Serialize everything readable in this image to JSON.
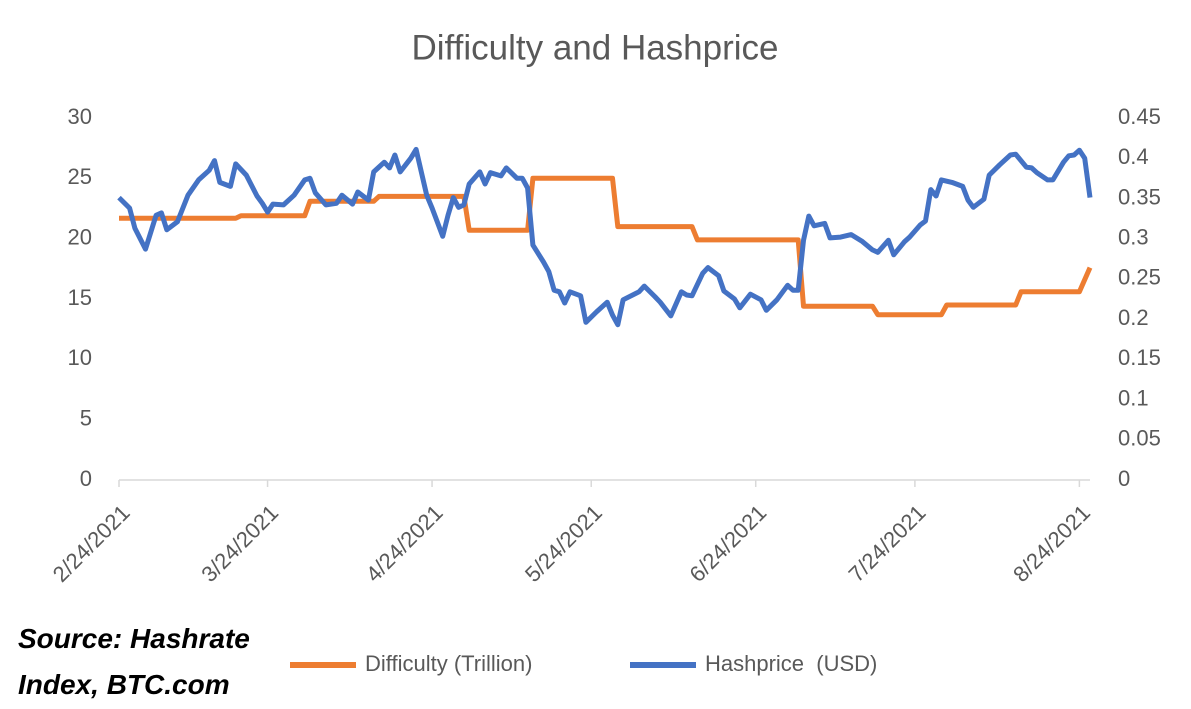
{
  "chart_data": {
    "type": "line",
    "title": "Difficulty and Hashprice",
    "source": "Source: Hashrate Index, BTC.com",
    "xlim": [
      "2/24/2021",
      "8/26/2021"
    ],
    "xticks": [
      "2/24/2021",
      "3/24/2021",
      "4/24/2021",
      "5/24/2021",
      "6/24/2021",
      "7/24/2021",
      "8/24/2021"
    ],
    "ylim": [
      0,
      30
    ],
    "yticks": [
      0,
      5,
      10,
      15,
      20,
      25,
      30
    ],
    "y2lim": [
      0,
      0.45
    ],
    "y2ticks": [
      0,
      0.05,
      0.1,
      0.15,
      0.2,
      0.25,
      0.3,
      0.35,
      0.4,
      0.45
    ],
    "grid": false,
    "series": [
      {
        "name": "Difficulty (Trillion)",
        "color": "#ed7d31",
        "axis": "y",
        "x": [
          "2/24/2021",
          "3/18/2021",
          "3/19/2021",
          "3/31/2021",
          "4/1/2021",
          "4/13/2021",
          "4/14/2021",
          "4/30/2021",
          "5/1/2021",
          "5/12/2021",
          "5/13/2021",
          "5/28/2021",
          "5/29/2021",
          "6/12/2021",
          "6/13/2021",
          "7/2/2021",
          "7/3/2021",
          "7/16/2021",
          "7/17/2021",
          "7/29/2021",
          "7/30/2021",
          "8/12/2021",
          "8/13/2021",
          "8/24/2021",
          "8/26/2021"
        ],
        "values": [
          21.7,
          21.7,
          21.9,
          21.9,
          23.1,
          23.1,
          23.5,
          23.5,
          20.7,
          20.7,
          25.0,
          25.0,
          21.0,
          21.0,
          19.9,
          19.9,
          14.4,
          14.4,
          13.7,
          13.7,
          14.5,
          14.5,
          15.6,
          15.6,
          17.6
        ]
      },
      {
        "name": "Hashprice  (USD)",
        "color": "#4472c4",
        "axis": "y2",
        "x": [
          "2/24/2021",
          "2/26/2021",
          "2/27/2021",
          "3/1/2021",
          "3/3/2021",
          "3/4/2021",
          "3/5/2021",
          "3/7/2021",
          "3/9/2021",
          "3/11/2021",
          "3/13/2021",
          "3/14/2021",
          "3/15/2021",
          "3/17/2021",
          "3/18/2021",
          "3/20/2021",
          "3/22/2021",
          "3/23/2021",
          "3/24/2021",
          "3/25/2021",
          "3/27/2021",
          "3/29/2021",
          "3/31/2021",
          "4/1/2021",
          "4/2/2021",
          "4/4/2021",
          "4/6/2021",
          "4/7/2021",
          "4/9/2021",
          "4/10/2021",
          "4/12/2021",
          "4/13/2021",
          "4/15/2021",
          "4/16/2021",
          "4/17/2021",
          "4/18/2021",
          "4/20/2021",
          "4/21/2021",
          "4/23/2021",
          "4/24/2021",
          "4/26/2021",
          "4/27/2021",
          "4/28/2021",
          "4/29/2021",
          "4/30/2021",
          "5/1/2021",
          "5/3/2021",
          "5/4/2021",
          "5/5/2021",
          "5/7/2021",
          "5/8/2021",
          "5/10/2021",
          "5/11/2021",
          "5/12/2021",
          "5/13/2021",
          "5/15/2021",
          "5/16/2021",
          "5/17/2021",
          "5/18/2021",
          "5/19/2021",
          "5/20/2021",
          "5/22/2021",
          "5/23/2021",
          "5/25/2021",
          "5/27/2021",
          "5/28/2021",
          "5/29/2021",
          "5/30/2021",
          "6/2/2021",
          "6/3/2021",
          "6/5/2021",
          "6/6/2021",
          "6/8/2021",
          "6/10/2021",
          "6/11/2021",
          "6/12/2021",
          "6/14/2021",
          "6/15/2021",
          "6/17/2021",
          "6/18/2021",
          "6/20/2021",
          "6/21/2021",
          "6/23/2021",
          "6/25/2021",
          "6/26/2021",
          "6/28/2021",
          "6/30/2021",
          "7/1/2021",
          "7/2/2021",
          "7/3/2021",
          "7/4/2021",
          "7/5/2021",
          "7/7/2021",
          "7/8/2021",
          "7/10/2021",
          "7/12/2021",
          "7/14/2021",
          "7/16/2021",
          "7/17/2021",
          "7/19/2021",
          "7/20/2021",
          "7/22/2021",
          "7/23/2021",
          "7/25/2021",
          "7/26/2021",
          "7/27/2021",
          "7/28/2021",
          "7/29/2021",
          "7/31/2021",
          "8/2/2021",
          "8/3/2021",
          "8/4/2021",
          "8/6/2021",
          "8/7/2021",
          "8/9/2021",
          "8/11/2021",
          "8/12/2021",
          "8/14/2021",
          "8/15/2021",
          "8/16/2021",
          "8/18/2021",
          "8/19/2021",
          "8/21/2021",
          "8/22/2021",
          "8/23/2021",
          "8/24/2021",
          "8/25/2021",
          "8/26/2021"
        ],
        "values": [
          0.351,
          0.338,
          0.313,
          0.287,
          0.329,
          0.332,
          0.311,
          0.321,
          0.354,
          0.373,
          0.385,
          0.397,
          0.37,
          0.365,
          0.393,
          0.379,
          0.353,
          0.344,
          0.333,
          0.343,
          0.342,
          0.354,
          0.373,
          0.375,
          0.357,
          0.342,
          0.344,
          0.354,
          0.343,
          0.358,
          0.348,
          0.383,
          0.395,
          0.388,
          0.404,
          0.383,
          0.4,
          0.411,
          0.354,
          0.338,
          0.303,
          0.329,
          0.351,
          0.339,
          0.342,
          0.368,
          0.383,
          0.368,
          0.382,
          0.378,
          0.388,
          0.375,
          0.375,
          0.363,
          0.292,
          0.271,
          0.259,
          0.236,
          0.234,
          0.22,
          0.234,
          0.229,
          0.196,
          0.209,
          0.221,
          0.205,
          0.193,
          0.224,
          0.234,
          0.241,
          0.228,
          0.221,
          0.204,
          0.234,
          0.23,
          0.229,
          0.257,
          0.264,
          0.254,
          0.235,
          0.225,
          0.214,
          0.231,
          0.224,
          0.211,
          0.224,
          0.242,
          0.236,
          0.236,
          0.298,
          0.328,
          0.316,
          0.319,
          0.301,
          0.302,
          0.305,
          0.297,
          0.286,
          0.283,
          0.298,
          0.28,
          0.296,
          0.302,
          0.317,
          0.322,
          0.361,
          0.353,
          0.373,
          0.37,
          0.365,
          0.348,
          0.339,
          0.349,
          0.379,
          0.392,
          0.404,
          0.405,
          0.389,
          0.388,
          0.382,
          0.373,
          0.373,
          0.395,
          0.403,
          0.404,
          0.41,
          0.4,
          0.351
        ]
      }
    ]
  }
}
